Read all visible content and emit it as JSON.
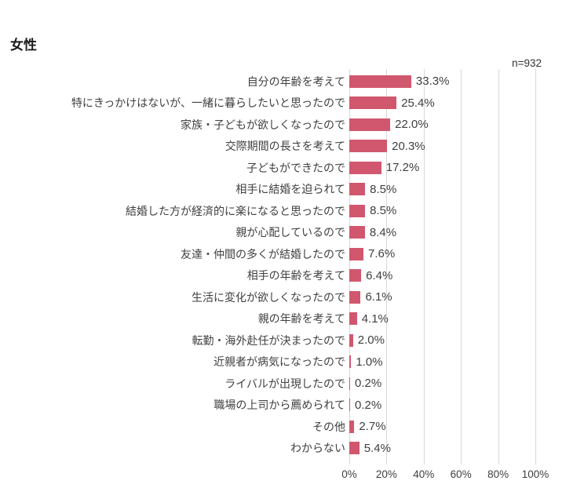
{
  "title": "女性",
  "sample_size": "n=932",
  "colors": {
    "bar": "#d1576e",
    "gridline": "#d9d9d9",
    "text": "#3f3f3f",
    "title_text": "#1a1a1a",
    "background": "#ffffff"
  },
  "chart_data": {
    "type": "bar",
    "orientation": "horizontal",
    "title": "女性",
    "sample_size": "n=932",
    "categories": [
      "自分の年齢を考えて",
      "特にきっかけはないが、一緒に暮らしたいと思ったので",
      "家族・子どもが欲しくなったので",
      "交際期間の長さを考えて",
      "子どもができたので",
      "相手に結婚を迫られて",
      "結婚した方が経済的に楽になると思ったので",
      "親が心配しているので",
      "友達・仲間の多くが結婚したので",
      "相手の年齢を考えて",
      "生活に変化が欲しくなったので",
      "親の年齢を考えて",
      "転勤・海外赴任が決まったので",
      "近親者が病気になったので",
      "ライバルが出現したので",
      "職場の上司から薦められて",
      "その他",
      "わからない"
    ],
    "values": [
      33.3,
      25.4,
      22.0,
      20.3,
      17.2,
      8.5,
      8.5,
      8.4,
      7.6,
      6.4,
      6.1,
      4.1,
      2.0,
      1.0,
      0.2,
      0.2,
      2.7,
      5.4
    ],
    "value_labels": [
      "33.3%",
      "25.4%",
      "22.0%",
      "20.3%",
      "17.2%",
      "8.5%",
      "8.5%",
      "8.4%",
      "7.6%",
      "6.4%",
      "6.1%",
      "4.1%",
      "2.0%",
      "1.0%",
      "0.2%",
      "0.2%",
      "2.7%",
      "5.4%"
    ],
    "xlabel": "",
    "ylabel": "",
    "xlim": [
      0,
      100
    ],
    "x_ticks": [
      0,
      20,
      40,
      60,
      80,
      100
    ],
    "x_tick_labels": [
      "0%",
      "20%",
      "40%",
      "60%",
      "80%",
      "100%"
    ],
    "grid": "vertical",
    "legend": "none"
  }
}
